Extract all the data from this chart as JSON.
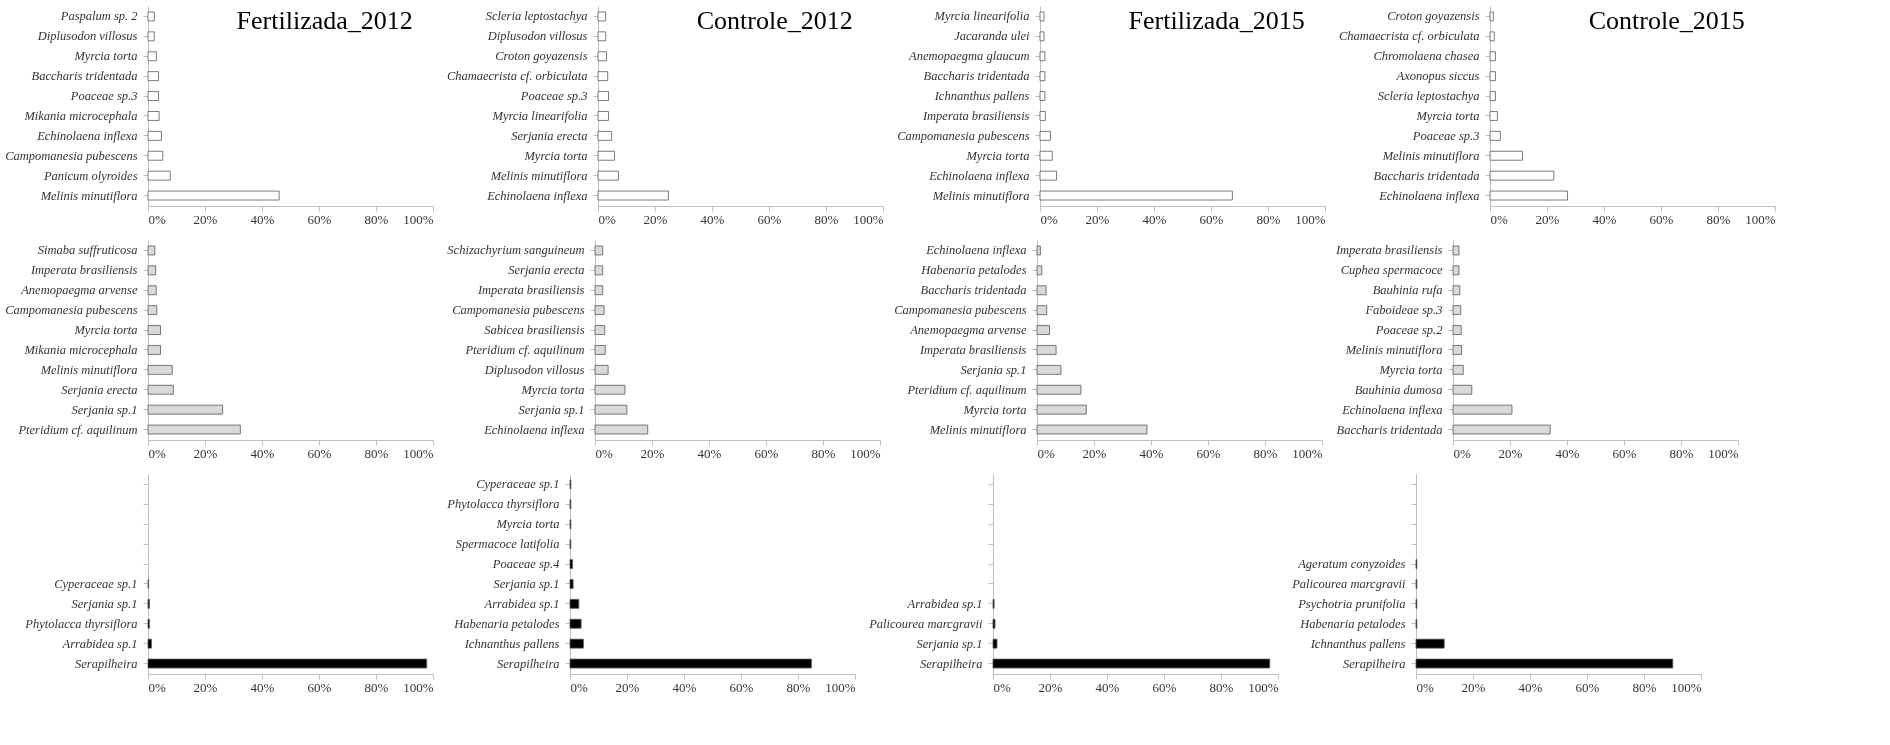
{
  "chart_data": [
    {
      "type": "bar",
      "orientation": "horizontal",
      "title": "Fertilizada_2012",
      "categories": [
        "Paspalum sp. 2",
        "Diplusodon villosus",
        "Myrcia torta",
        "Baccharis tridentada",
        "Poaceae sp.3",
        "Mikania microcephala",
        "Echinolaena inflexa",
        "Campomanesia pubescens",
        "Panicum olyroides",
        "Melinis minutiflora"
      ],
      "values": [
        2.2,
        2.2,
        2.9,
        3.7,
        3.7,
        3.9,
        4.7,
        5.2,
        7.8,
        46
      ],
      "color": "#ffffff",
      "xlim": [
        0,
        100
      ],
      "xticks": [
        {
          "value": 0,
          "label": "0%"
        },
        {
          "value": 20,
          "label": "20%"
        },
        {
          "value": 40,
          "label": "40%"
        },
        {
          "value": 60,
          "label": "60%"
        },
        {
          "value": 80,
          "label": "80%"
        },
        {
          "value": 100,
          "label": "100%"
        }
      ],
      "grid": false
    },
    {
      "type": "bar",
      "orientation": "horizontal",
      "title": "Controle_2012",
      "categories": [
        "Scleria leptostachya",
        "Diplusodon villosus",
        "Croton goyazensis",
        "Chamaecrista cf. orbiculata",
        "Poaceae sp.3",
        "Myrcia linearifolia",
        "Serjania erecta",
        "Myrcia torta",
        "Melinis minutiflora",
        "Echinolaena inflexa"
      ],
      "values": [
        2.7,
        2.7,
        3.0,
        3.4,
        3.7,
        3.7,
        4.8,
        5.8,
        7.2,
        24.7
      ],
      "color": "#ffffff",
      "xlim": [
        0,
        100
      ],
      "xticks": [
        {
          "value": 0,
          "label": "0%"
        },
        {
          "value": 20,
          "label": "20%"
        },
        {
          "value": 40,
          "label": "40%"
        },
        {
          "value": 60,
          "label": "60%"
        },
        {
          "value": 80,
          "label": "80%"
        },
        {
          "value": 100,
          "label": "100%"
        }
      ],
      "grid": false
    },
    {
      "type": "bar",
      "orientation": "horizontal",
      "title": "Fertilizada_2015",
      "categories": [
        "Myrcia linearifolia",
        "Jacaranda ulei",
        "Anemopaegma glaucum",
        "Baccharis tridentada",
        "Ichnanthus pallens",
        "Imperata brasiliensis",
        "Campomanesia pubescens",
        "Myrcia torta",
        "Echinolaena inflexa",
        "Melinis minutiflora"
      ],
      "values": [
        1.4,
        1.4,
        1.7,
        1.7,
        1.7,
        1.9,
        3.7,
        4.3,
        5.8,
        67.5
      ],
      "color": "#ffffff",
      "xlim": [
        0,
        100
      ],
      "xticks": [
        {
          "value": 0,
          "label": "0%"
        },
        {
          "value": 20,
          "label": "20%"
        },
        {
          "value": 40,
          "label": "40%"
        },
        {
          "value": 60,
          "label": "60%"
        },
        {
          "value": 80,
          "label": "80%"
        },
        {
          "value": 100,
          "label": "100%"
        }
      ],
      "grid": false
    },
    {
      "type": "bar",
      "orientation": "horizontal",
      "title": "Controle_2015",
      "categories": [
        "Croton goyazensis",
        "Chamaecrista cf. orbiculata",
        "Chromolaena chasea",
        "Axonopus siccus",
        "Scleria leptostachya",
        "Myrcia torta",
        "Poaceae sp.3",
        "Melinis minutiflora",
        "Baccharis tridentada",
        "Echinolaena inflexa"
      ],
      "values": [
        1.2,
        1.5,
        1.9,
        1.9,
        1.9,
        2.6,
        3.6,
        11.4,
        22.4,
        27.2
      ],
      "color": "#ffffff",
      "xlim": [
        0,
        100
      ],
      "xticks": [
        {
          "value": 0,
          "label": "0%"
        },
        {
          "value": 20,
          "label": "20%"
        },
        {
          "value": 40,
          "label": "40%"
        },
        {
          "value": 60,
          "label": "60%"
        },
        {
          "value": 80,
          "label": "80%"
        },
        {
          "value": 100,
          "label": "100%"
        }
      ],
      "grid": false
    },
    {
      "type": "bar",
      "orientation": "horizontal",
      "categories": [
        "Simaba suffruticosa",
        "Imperata brasiliensis",
        "Anemopaegma arvense",
        "Campomanesia pubescens",
        "Myrcia torta",
        "Mikania microcephala",
        "Melinis minutiflora",
        "Serjania erecta",
        "Serjania sp.1",
        "Pteridium cf. aquilinum"
      ],
      "values": [
        2.4,
        2.7,
        2.9,
        3.1,
        4.4,
        4.4,
        8.5,
        8.9,
        26.2,
        32.4
      ],
      "color": "#d9d9d9",
      "xlim": [
        0,
        100
      ],
      "xticks": [
        {
          "value": 0,
          "label": "0%"
        },
        {
          "value": 20,
          "label": "20%"
        },
        {
          "value": 40,
          "label": "40%"
        },
        {
          "value": 60,
          "label": "60%"
        },
        {
          "value": 80,
          "label": "80%"
        },
        {
          "value": 100,
          "label": "100%"
        }
      ],
      "grid": false
    },
    {
      "type": "bar",
      "orientation": "horizontal",
      "categories": [
        "Schizachyrium sanguineum",
        "Serjania erecta",
        "Imperata brasiliensis",
        "Campomanesia pubescens",
        "Sabicea brasiliensis",
        "Pteridium cf. aquilinum",
        "Diplusodon villosus",
        "Myrcia torta",
        "Serjania sp.1",
        "Echinolaena inflexa"
      ],
      "values": [
        2.7,
        2.7,
        2.7,
        3.2,
        3.4,
        3.6,
        4.6,
        10.5,
        11.2,
        18.5
      ],
      "color": "#d9d9d9",
      "xlim": [
        0,
        100
      ],
      "xticks": [
        {
          "value": 0,
          "label": "0%"
        },
        {
          "value": 20,
          "label": "20%"
        },
        {
          "value": 40,
          "label": "40%"
        },
        {
          "value": 60,
          "label": "60%"
        },
        {
          "value": 80,
          "label": "80%"
        },
        {
          "value": 100,
          "label": "100%"
        }
      ],
      "grid": false
    },
    {
      "type": "bar",
      "orientation": "horizontal",
      "categories": [
        "Echinolaena inflexa",
        "Habenaria petalodes",
        "Baccharis tridentada",
        "Campomanesia pubescens",
        "Anemopaegma arvense",
        "Imperata brasiliensis",
        "Serjania sp.1",
        "Pteridium cf. aquilinum",
        "Myrcia torta",
        "Melinis minutiflora"
      ],
      "values": [
        1.2,
        1.7,
        3.2,
        3.4,
        4.4,
        6.7,
        8.4,
        15.4,
        17.3,
        38.6
      ],
      "color": "#d9d9d9",
      "xlim": [
        0,
        100
      ],
      "xticks": [
        {
          "value": 0,
          "label": "0%"
        },
        {
          "value": 20,
          "label": "20%"
        },
        {
          "value": 40,
          "label": "40%"
        },
        {
          "value": 60,
          "label": "60%"
        },
        {
          "value": 80,
          "label": "80%"
        },
        {
          "value": 100,
          "label": "100%"
        }
      ],
      "grid": false
    },
    {
      "type": "bar",
      "orientation": "horizontal",
      "categories": [
        "Imperata brasiliensis",
        "Cuphea spermacoce",
        "Bauhinia rufa",
        "Faboideae sp.3",
        "Poaceae sp.2",
        "Melinis minutiflora",
        "Myrcia torta",
        "Bauhinia dumosa",
        "Echinolaena inflexa",
        "Baccharis tridentada"
      ],
      "values": [
        2.1,
        2.1,
        2.4,
        2.7,
        2.9,
        3.0,
        3.6,
        6.6,
        20.7,
        34.1
      ],
      "color": "#d9d9d9",
      "xlim": [
        0,
        100
      ],
      "xticks": [
        {
          "value": 0,
          "label": "0%"
        },
        {
          "value": 20,
          "label": "20%"
        },
        {
          "value": 40,
          "label": "40%"
        },
        {
          "value": 60,
          "label": "60%"
        },
        {
          "value": 80,
          "label": "80%"
        },
        {
          "value": 100,
          "label": "100%"
        }
      ],
      "grid": false
    },
    {
      "type": "bar",
      "orientation": "horizontal",
      "categories": [
        null,
        null,
        null,
        null,
        null,
        "Cyperaceae sp.1",
        "Serjania sp.1",
        "Phytolacca thyrsiflora",
        "Arrabidea sp.1",
        "Serapilheira"
      ],
      "values": [
        null,
        null,
        null,
        null,
        null,
        0.2,
        0.5,
        0.5,
        1.2,
        97.8
      ],
      "color": "#000000",
      "xlim": [
        0,
        100
      ],
      "xticks": [
        {
          "value": 0,
          "label": "0%"
        },
        {
          "value": 20,
          "label": "20%"
        },
        {
          "value": 40,
          "label": "40%"
        },
        {
          "value": 60,
          "label": "60%"
        },
        {
          "value": 80,
          "label": "80%"
        },
        {
          "value": 100,
          "label": "100%"
        }
      ],
      "grid": false
    },
    {
      "type": "bar",
      "orientation": "horizontal",
      "categories": [
        "Cyperaceae sp.1",
        "Phytolacca thyrsiflora",
        "Myrcia torta",
        "Spermacoce latifolia",
        "Poaceae sp.4",
        "Serjania sp.1",
        "Arrabidea sp.1",
        "Habenaria petalodes",
        "Ichnanthus pallens",
        "Serapilheira"
      ],
      "values": [
        0.3,
        0.3,
        0.3,
        0.3,
        0.9,
        1.1,
        3.1,
        3.9,
        4.7,
        84.7
      ],
      "color": "#000000",
      "xlim": [
        0,
        100
      ],
      "xticks": [
        {
          "value": 0,
          "label": "0%"
        },
        {
          "value": 20,
          "label": "20%"
        },
        {
          "value": 40,
          "label": "40%"
        },
        {
          "value": 60,
          "label": "60%"
        },
        {
          "value": 80,
          "label": "80%"
        },
        {
          "value": 100,
          "label": "100%"
        }
      ],
      "grid": false
    },
    {
      "type": "bar",
      "orientation": "horizontal",
      "categories": [
        null,
        null,
        null,
        null,
        null,
        null,
        "Arrabidea sp.1",
        "Palicourea marcgravii",
        "Serjania sp.1",
        "Serapilheira"
      ],
      "values": [
        null,
        null,
        null,
        null,
        null,
        null,
        0.4,
        0.7,
        1.4,
        97.1
      ],
      "color": "#000000",
      "xlim": [
        0,
        100
      ],
      "xticks": [
        {
          "value": 0,
          "label": "0%"
        },
        {
          "value": 20,
          "label": "20%"
        },
        {
          "value": 40,
          "label": "40%"
        },
        {
          "value": 60,
          "label": "60%"
        },
        {
          "value": 80,
          "label": "80%"
        },
        {
          "value": 100,
          "label": "100%"
        }
      ],
      "grid": false
    },
    {
      "type": "bar",
      "orientation": "horizontal",
      "categories": [
        null,
        null,
        null,
        null,
        "Ageratum conyzoides",
        "Palicourea marcgravii",
        "Psychotria prunifolia",
        "Habenaria petalodes",
        "Ichnanthus pallens",
        "Serapilheira"
      ],
      "values": [
        null,
        null,
        null,
        null,
        0.3,
        0.3,
        0.3,
        0.3,
        9.9,
        90.1
      ],
      "color": "#000000",
      "xlim": [
        0,
        100
      ],
      "xticks": [
        {
          "value": 0,
          "label": "0%"
        },
        {
          "value": 20,
          "label": "20%"
        },
        {
          "value": 40,
          "label": "40%"
        },
        {
          "value": 60,
          "label": "60%"
        },
        {
          "value": 80,
          "label": "80%"
        },
        {
          "value": 100,
          "label": "100%"
        }
      ],
      "grid": false
    }
  ]
}
